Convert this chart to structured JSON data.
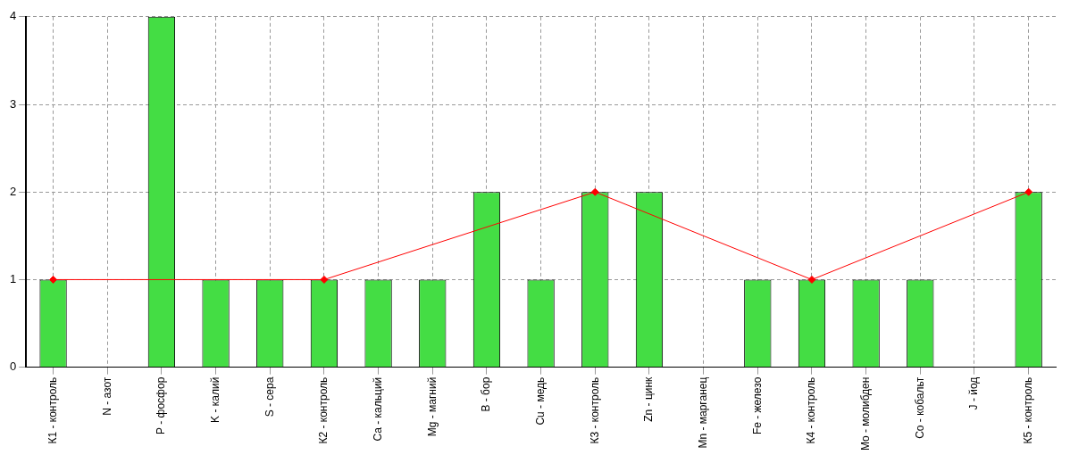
{
  "chart_data": {
    "type": "bar",
    "categories": [
      "К1 - контроль",
      "N - азот",
      "P - фосфор",
      "K - калий",
      "S - сера",
      "К2 - контроль",
      "Ca - кальций",
      "Mg - магний",
      "B - бор",
      "Cu - медь",
      "К3 - контроль",
      "Zn - цинк",
      "Mn - марганец",
      "Fe - железо",
      "К4 - контроль",
      "Mo - молибден",
      "Co - кобальт",
      "J - йод",
      "К5 - контроль"
    ],
    "series": [
      {
        "color": "#44dd44",
        "values": [
          1,
          0,
          4,
          1,
          1,
          1,
          1,
          1,
          2,
          1,
          2,
          2,
          0,
          1,
          1,
          1,
          1,
          0,
          2
        ]
      },
      {
        "type": "line",
        "color": "#ff0000",
        "marker": "diamond",
        "values": [
          1,
          null,
          null,
          null,
          null,
          1,
          null,
          null,
          null,
          null,
          2,
          null,
          null,
          null,
          1,
          null,
          null,
          null,
          2
        ]
      }
    ],
    "ylim": [
      0,
      4
    ],
    "yticks": [
      0,
      1,
      2,
      3,
      4
    ],
    "grid": true,
    "legend": false
  }
}
